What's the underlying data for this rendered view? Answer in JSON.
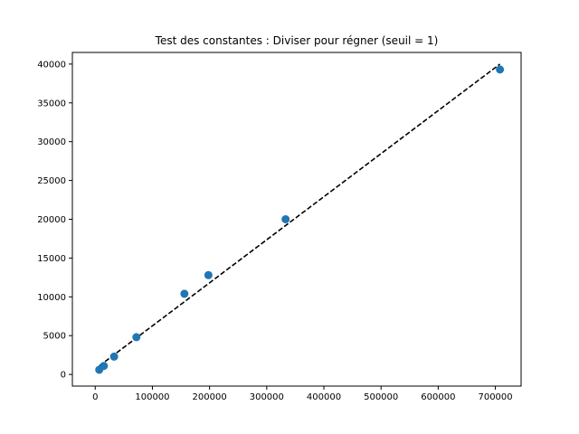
{
  "chart_data": {
    "type": "scatter",
    "title": "Test des constantes : Diviser pour régner (seuil = 1)",
    "xlabel": "",
    "ylabel": "",
    "xlim": [
      -40000,
      745000
    ],
    "ylim": [
      -1500,
      41500
    ],
    "x_ticks": [
      0,
      100000,
      200000,
      300000,
      400000,
      500000,
      600000,
      700000
    ],
    "x_tick_labels": [
      "0",
      "100000",
      "200000",
      "300000",
      "400000",
      "500000",
      "600000",
      "700000"
    ],
    "y_ticks": [
      0,
      5000,
      10000,
      15000,
      20000,
      25000,
      30000,
      35000,
      40000
    ],
    "y_tick_labels": [
      "0",
      "5000",
      "10000",
      "15000",
      "20000",
      "25000",
      "30000",
      "35000",
      "40000"
    ],
    "grid": false,
    "series": [
      {
        "kind": "points",
        "color": "#1f77b4",
        "x": [
          7000,
          15000,
          33000,
          72000,
          156000,
          198000,
          333000,
          708000
        ],
        "y": [
          600,
          1100,
          2300,
          4800,
          10400,
          12800,
          20000,
          39300
        ]
      },
      {
        "kind": "fit-line",
        "style": "dashed",
        "color": "#000000",
        "x": [
          7000,
          708000
        ],
        "y": [
          1100,
          40000
        ]
      }
    ]
  }
}
